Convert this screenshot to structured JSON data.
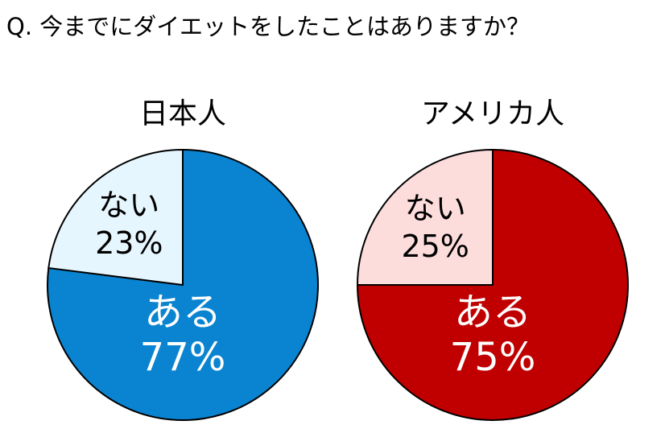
{
  "question": "Q. 今までにダイエットをしたことはありますか？",
  "chart_data": [
    {
      "type": "pie",
      "title": "日本人",
      "slices": [
        {
          "label": "ある",
          "value": 77,
          "value_label": "77%",
          "color": "#0A84D0",
          "text_color": "#FFFFFF"
        },
        {
          "label": "ない",
          "value": 23,
          "value_label": "23%",
          "color": "#E6F6FE",
          "text_color": "#000000"
        }
      ]
    },
    {
      "type": "pie",
      "title": "アメリカ人",
      "slices": [
        {
          "label": "ある",
          "value": 75,
          "value_label": "75%",
          "color": "#C00000",
          "text_color": "#FFFFFF"
        },
        {
          "label": "ない",
          "value": 25,
          "value_label": "25%",
          "color": "#FDDCDC",
          "text_color": "#000000"
        }
      ]
    }
  ]
}
